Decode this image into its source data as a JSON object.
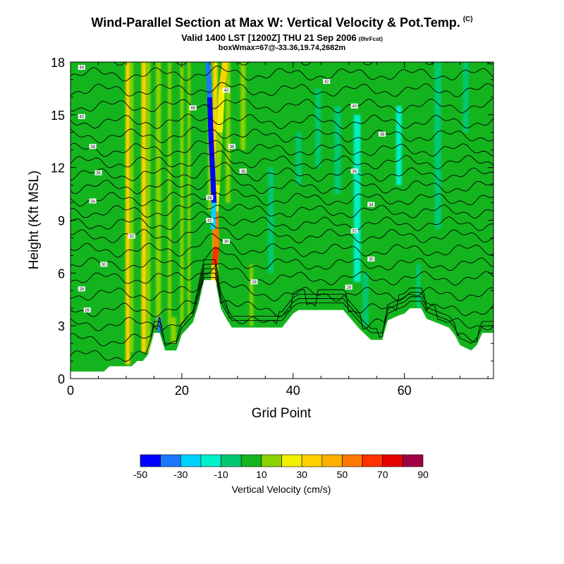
{
  "title": {
    "main": "Wind-Parallel Section at Max W: Vertical Velocity & Pot.Temp.",
    "main_tag": "(C)",
    "valid": "Valid 1400 LST [1200Z] THU 21 Sep 2006",
    "valid_tag": "(0hrFcst)",
    "box": "boxWmax=67@-33.36,19.74,2682m"
  },
  "chart_data": {
    "type": "heatmap",
    "xlabel": "Grid Point",
    "ylabel": "Height (Kft MSL)",
    "xlim": [
      0,
      76
    ],
    "ylim": [
      0,
      18
    ],
    "x_ticks": [
      0,
      20,
      40,
      60
    ],
    "y_ticks": [
      0,
      3,
      6,
      9,
      12,
      15,
      18
    ],
    "colorbar": {
      "label": "Vertical Velocity (cm/s)",
      "tick_labels": [
        "-50",
        "-30",
        "-10",
        "10",
        "30",
        "50",
        "70",
        "90"
      ],
      "bounds": [
        -50,
        -40,
        -30,
        -20,
        -10,
        0,
        10,
        20,
        30,
        40,
        50,
        60,
        70,
        80,
        90
      ],
      "colors": [
        "#0000ff",
        "#1a78ff",
        "#00d2ff",
        "#00f0c8",
        "#00c873",
        "#14b41e",
        "#8cd200",
        "#f0f000",
        "#ffd200",
        "#ffaf00",
        "#ff7800",
        "#ff3200",
        "#e60000",
        "#a00046"
      ]
    },
    "background_w": 5,
    "terrain_kft": [
      [
        0,
        0.4
      ],
      [
        6,
        0.4
      ],
      [
        7,
        0.7
      ],
      [
        11,
        0.7
      ],
      [
        12,
        1.0
      ],
      [
        13,
        1.0
      ],
      [
        14,
        1.4
      ],
      [
        15,
        2.6
      ],
      [
        16,
        2.6
      ],
      [
        17,
        1.6
      ],
      [
        19,
        1.6
      ],
      [
        20,
        2.5
      ],
      [
        22,
        3.2
      ],
      [
        23,
        4.2
      ],
      [
        24,
        5.6
      ],
      [
        26,
        5.6
      ],
      [
        27,
        4.0
      ],
      [
        28,
        3.4
      ],
      [
        29,
        2.9
      ],
      [
        38,
        2.9
      ],
      [
        40,
        3.7
      ],
      [
        41,
        3.9
      ],
      [
        49,
        3.9
      ],
      [
        52,
        2.8
      ],
      [
        54,
        2.2
      ],
      [
        56,
        2.2
      ],
      [
        57,
        3.3
      ],
      [
        59,
        3.6
      ],
      [
        60,
        3.7
      ],
      [
        61,
        4.0
      ],
      [
        63,
        4.0
      ],
      [
        64,
        3.4
      ],
      [
        68,
        2.9
      ],
      [
        69,
        2.5
      ],
      [
        70,
        1.9
      ],
      [
        72,
        1.6
      ],
      [
        73,
        1.9
      ],
      [
        74,
        2.6
      ],
      [
        76,
        2.6
      ]
    ],
    "w_features": [
      {
        "x": 10.3,
        "z0": 0.8,
        "z1": 18,
        "w": 0.8,
        "value": 30
      },
      {
        "x": 11.0,
        "z0": 1.5,
        "z1": 18,
        "w": 0.6,
        "value": 10
      },
      {
        "x": 13.2,
        "z0": 1.5,
        "z1": 18,
        "w": 0.9,
        "value": 30
      },
      {
        "x": 14.0,
        "z0": 1.5,
        "z1": 18,
        "w": 0.7,
        "value": 10
      },
      {
        "x": 15.8,
        "z0": 2.8,
        "z1": 18,
        "w": 0.9,
        "value": 10
      },
      {
        "x": 16.0,
        "z0": 2.6,
        "z1": 3.5,
        "w": 0.6,
        "value": -40
      },
      {
        "x": 17.8,
        "z0": 3.0,
        "z1": 18,
        "w": 0.6,
        "value": 10
      },
      {
        "x": 18.5,
        "z0": 2.0,
        "z1": 3.5,
        "w": 1.0,
        "value": 10
      },
      {
        "x": 20.0,
        "z0": 3.0,
        "z1": 18,
        "w": 0.6,
        "value": 10
      },
      {
        "x": 21.3,
        "z0": 3.5,
        "z1": 18,
        "w": 0.5,
        "value": 10
      },
      {
        "x": 25.0,
        "z0": 9.5,
        "z1": 18,
        "w": 0.6,
        "value": 10
      },
      {
        "x": 26.0,
        "z0": 5.6,
        "z1": 18,
        "w": 0.9,
        "value": 30
      },
      {
        "x": 28.3,
        "z0": 10.0,
        "z1": 18,
        "w": 0.8,
        "value": 10
      },
      {
        "x": 31.0,
        "z0": 13.0,
        "z1": 18,
        "w": 0.9,
        "value": 10
      },
      {
        "x": 32.5,
        "z0": 3.0,
        "z1": 6.5,
        "w": 0.6,
        "value": 10
      },
      {
        "x": 36.0,
        "z0": 6.0,
        "z1": 12.0,
        "w": 1.0,
        "value": -10
      },
      {
        "x": 41.0,
        "z0": 11.0,
        "z1": 14.0,
        "w": 1.0,
        "value": -10
      },
      {
        "x": 44.5,
        "z0": 12.0,
        "z1": 16.5,
        "w": 1.0,
        "value": -10
      },
      {
        "x": 48.0,
        "z0": 10.5,
        "z1": 15.5,
        "w": 1.2,
        "value": -10
      },
      {
        "x": 51.5,
        "z0": 5.5,
        "z1": 15.0,
        "w": 1.2,
        "value": -20
      },
      {
        "x": 53.0,
        "z0": 3.0,
        "z1": 6.0,
        "w": 1.0,
        "value": -10
      },
      {
        "x": 59.0,
        "z0": 11.0,
        "z1": 15.5,
        "w": 1.0,
        "value": -20
      },
      {
        "x": 62.5,
        "z0": 4.0,
        "z1": 6.5,
        "w": 0.8,
        "value": -10
      },
      {
        "x": 66.0,
        "z0": 8.5,
        "z1": 18.0,
        "w": 1.2,
        "value": -10
      },
      {
        "x": 71.0,
        "z0": 14.0,
        "z1": 18.0,
        "w": 1.0,
        "value": -10
      }
    ],
    "updraft_core": [
      {
        "x": 25.4,
        "z": 3.6,
        "value": 10
      },
      {
        "x": 25.9,
        "z": 6.5,
        "value": 50
      },
      {
        "x": 26.2,
        "z": 7.5,
        "value": 70
      },
      {
        "x": 26.0,
        "z": 9.5,
        "value": 30
      },
      {
        "x": 26.3,
        "z": 11.0,
        "value": 10
      },
      {
        "x": 26.8,
        "z": 14.0,
        "value": 10
      },
      {
        "x": 27.2,
        "z": 16.5,
        "value": 30
      },
      {
        "x": 27.8,
        "z": 18.0,
        "value": 30
      }
    ],
    "downdraft_core": [
      {
        "x": 25.6,
        "z": 8.5,
        "value": -20
      },
      {
        "x": 25.8,
        "z": 10.0,
        "value": -40
      },
      {
        "x": 25.5,
        "z": 12.0,
        "value": -50
      },
      {
        "x": 25.2,
        "z": 14.0,
        "value": -50
      },
      {
        "x": 25.0,
        "z": 16.0,
        "value": -40
      },
      {
        "x": 24.7,
        "z": 18.0,
        "value": -30
      }
    ],
    "theta_isentropes": {
      "values": [
        23,
        24,
        25,
        26,
        27,
        28,
        29,
        30,
        31,
        32,
        33,
        34,
        35,
        36,
        37,
        38,
        39,
        40,
        41,
        42,
        43,
        44
      ],
      "heights_kft": [
        1.3,
        2.2,
        3.1,
        3.9,
        4.8,
        5.7,
        6.5,
        7.3,
        8.1,
        8.8,
        9.5,
        10.2,
        10.9,
        11.6,
        12.3,
        13.0,
        13.8,
        14.6,
        15.5,
        16.4,
        17.3,
        18.2
      ]
    },
    "theta_labels": [
      {
        "text": "44",
        "x": 2,
        "z": 17.7
      },
      {
        "text": "40",
        "x": 2,
        "z": 14.9
      },
      {
        "text": "38",
        "x": 4,
        "z": 13.2
      },
      {
        "text": "36",
        "x": 5,
        "z": 11.7
      },
      {
        "text": "34",
        "x": 4,
        "z": 10.1
      },
      {
        "text": "32",
        "x": 11,
        "z": 8.1
      },
      {
        "text": "30",
        "x": 6,
        "z": 6.5
      },
      {
        "text": "28",
        "x": 2,
        "z": 5.1
      },
      {
        "text": "26",
        "x": 3,
        "z": 3.9
      },
      {
        "text": "46",
        "x": 22,
        "z": 15.4
      },
      {
        "text": "42",
        "x": 28,
        "z": 16.4
      },
      {
        "text": "38",
        "x": 29,
        "z": 13.2
      },
      {
        "text": "36",
        "x": 31,
        "z": 11.8
      },
      {
        "text": "34",
        "x": 25,
        "z": 10.3
      },
      {
        "text": "32",
        "x": 25,
        "z": 9.0
      },
      {
        "text": "30",
        "x": 28,
        "z": 7.8
      },
      {
        "text": "28",
        "x": 33,
        "z": 5.5
      },
      {
        "text": "42",
        "x": 46,
        "z": 16.9
      },
      {
        "text": "40",
        "x": 51,
        "z": 15.5
      },
      {
        "text": "38",
        "x": 56,
        "z": 13.9
      },
      {
        "text": "36",
        "x": 51,
        "z": 11.8
      },
      {
        "text": "34",
        "x": 54,
        "z": 9.9
      },
      {
        "text": "32",
        "x": 51,
        "z": 8.4
      },
      {
        "text": "30",
        "x": 54,
        "z": 6.8
      },
      {
        "text": "28",
        "x": 50,
        "z": 5.2
      }
    ]
  }
}
